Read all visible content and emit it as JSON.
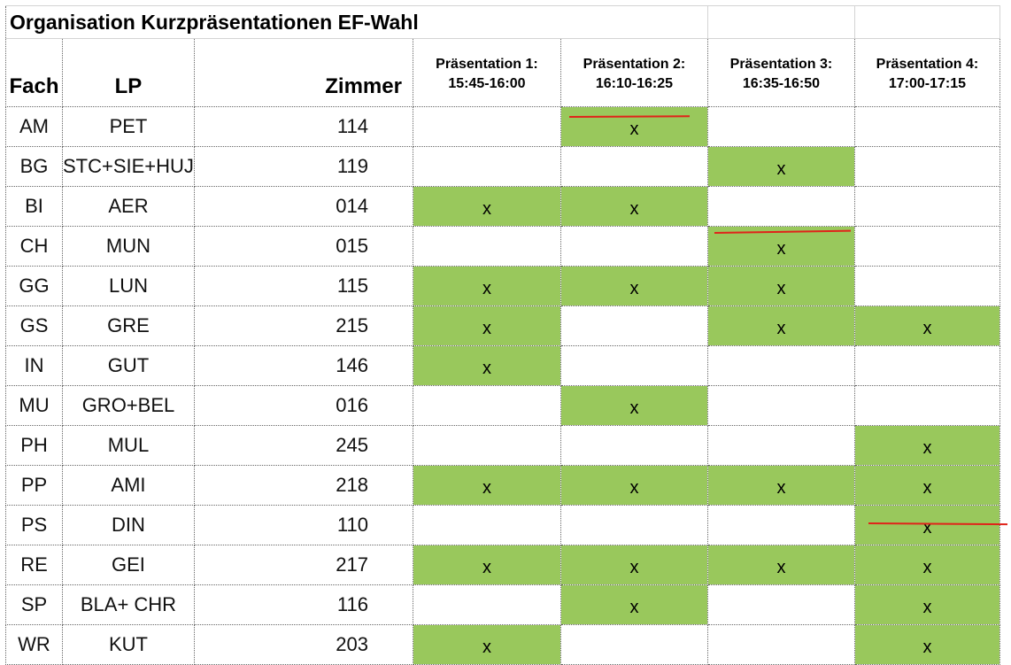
{
  "title": "Organisation Kurzpräsentationen EF-Wahl",
  "columns": {
    "fach": "Fach",
    "lp": "LP",
    "zimmer": "Zimmer",
    "slots": [
      {
        "label": "Präsentation 1:",
        "time": "15:45-16:00"
      },
      {
        "label": "Präsentation 2:",
        "time": "16:10-16:25"
      },
      {
        "label": "Präsentation 3:",
        "time": "16:35-16:50"
      },
      {
        "label": "Präsentation 4:",
        "time": "17:00-17:15"
      }
    ]
  },
  "mark_symbol": "x",
  "highlight_color": "#99c85c",
  "strike_color": "#e0231a",
  "rows": [
    {
      "fach": "AM",
      "lp": "PET",
      "zimmer": "114",
      "slots": [
        false,
        true,
        false,
        false
      ],
      "struck_slot": 2
    },
    {
      "fach": "BG",
      "lp": "STC+SIE+HUJ",
      "zimmer": "119",
      "slots": [
        false,
        false,
        true,
        false
      ]
    },
    {
      "fach": "BI",
      "lp": "AER",
      "zimmer": "014",
      "slots": [
        true,
        true,
        false,
        false
      ]
    },
    {
      "fach": "CH",
      "lp": "MUN",
      "zimmer": "015",
      "slots": [
        false,
        false,
        true,
        false
      ],
      "struck_slot": 3
    },
    {
      "fach": "GG",
      "lp": "LUN",
      "zimmer": "115",
      "slots": [
        true,
        true,
        true,
        false
      ]
    },
    {
      "fach": "GS",
      "lp": "GRE",
      "zimmer": "215",
      "slots": [
        true,
        false,
        true,
        true
      ]
    },
    {
      "fach": "IN",
      "lp": "GUT",
      "zimmer": "146",
      "slots": [
        true,
        false,
        false,
        false
      ]
    },
    {
      "fach": "MU",
      "lp": "GRO+BEL",
      "zimmer": "016",
      "slots": [
        false,
        true,
        false,
        false
      ]
    },
    {
      "fach": "PH",
      "lp": "MUL",
      "zimmer": "245",
      "slots": [
        false,
        false,
        false,
        true
      ]
    },
    {
      "fach": "PP",
      "lp": "AMI",
      "zimmer": "218",
      "slots": [
        true,
        true,
        true,
        true
      ]
    },
    {
      "fach": "PS",
      "lp": "DIN",
      "zimmer": "110",
      "slots": [
        false,
        false,
        false,
        true
      ],
      "struck_slot": 4
    },
    {
      "fach": "RE",
      "lp": "GEI",
      "zimmer": "217",
      "slots": [
        true,
        true,
        true,
        true
      ]
    },
    {
      "fach": "SP",
      "lp": "BLA+ CHR",
      "zimmer": "116",
      "slots": [
        false,
        true,
        false,
        true
      ]
    },
    {
      "fach": "WR",
      "lp": "KUT",
      "zimmer": "203",
      "slots": [
        true,
        false,
        false,
        true
      ]
    }
  ]
}
